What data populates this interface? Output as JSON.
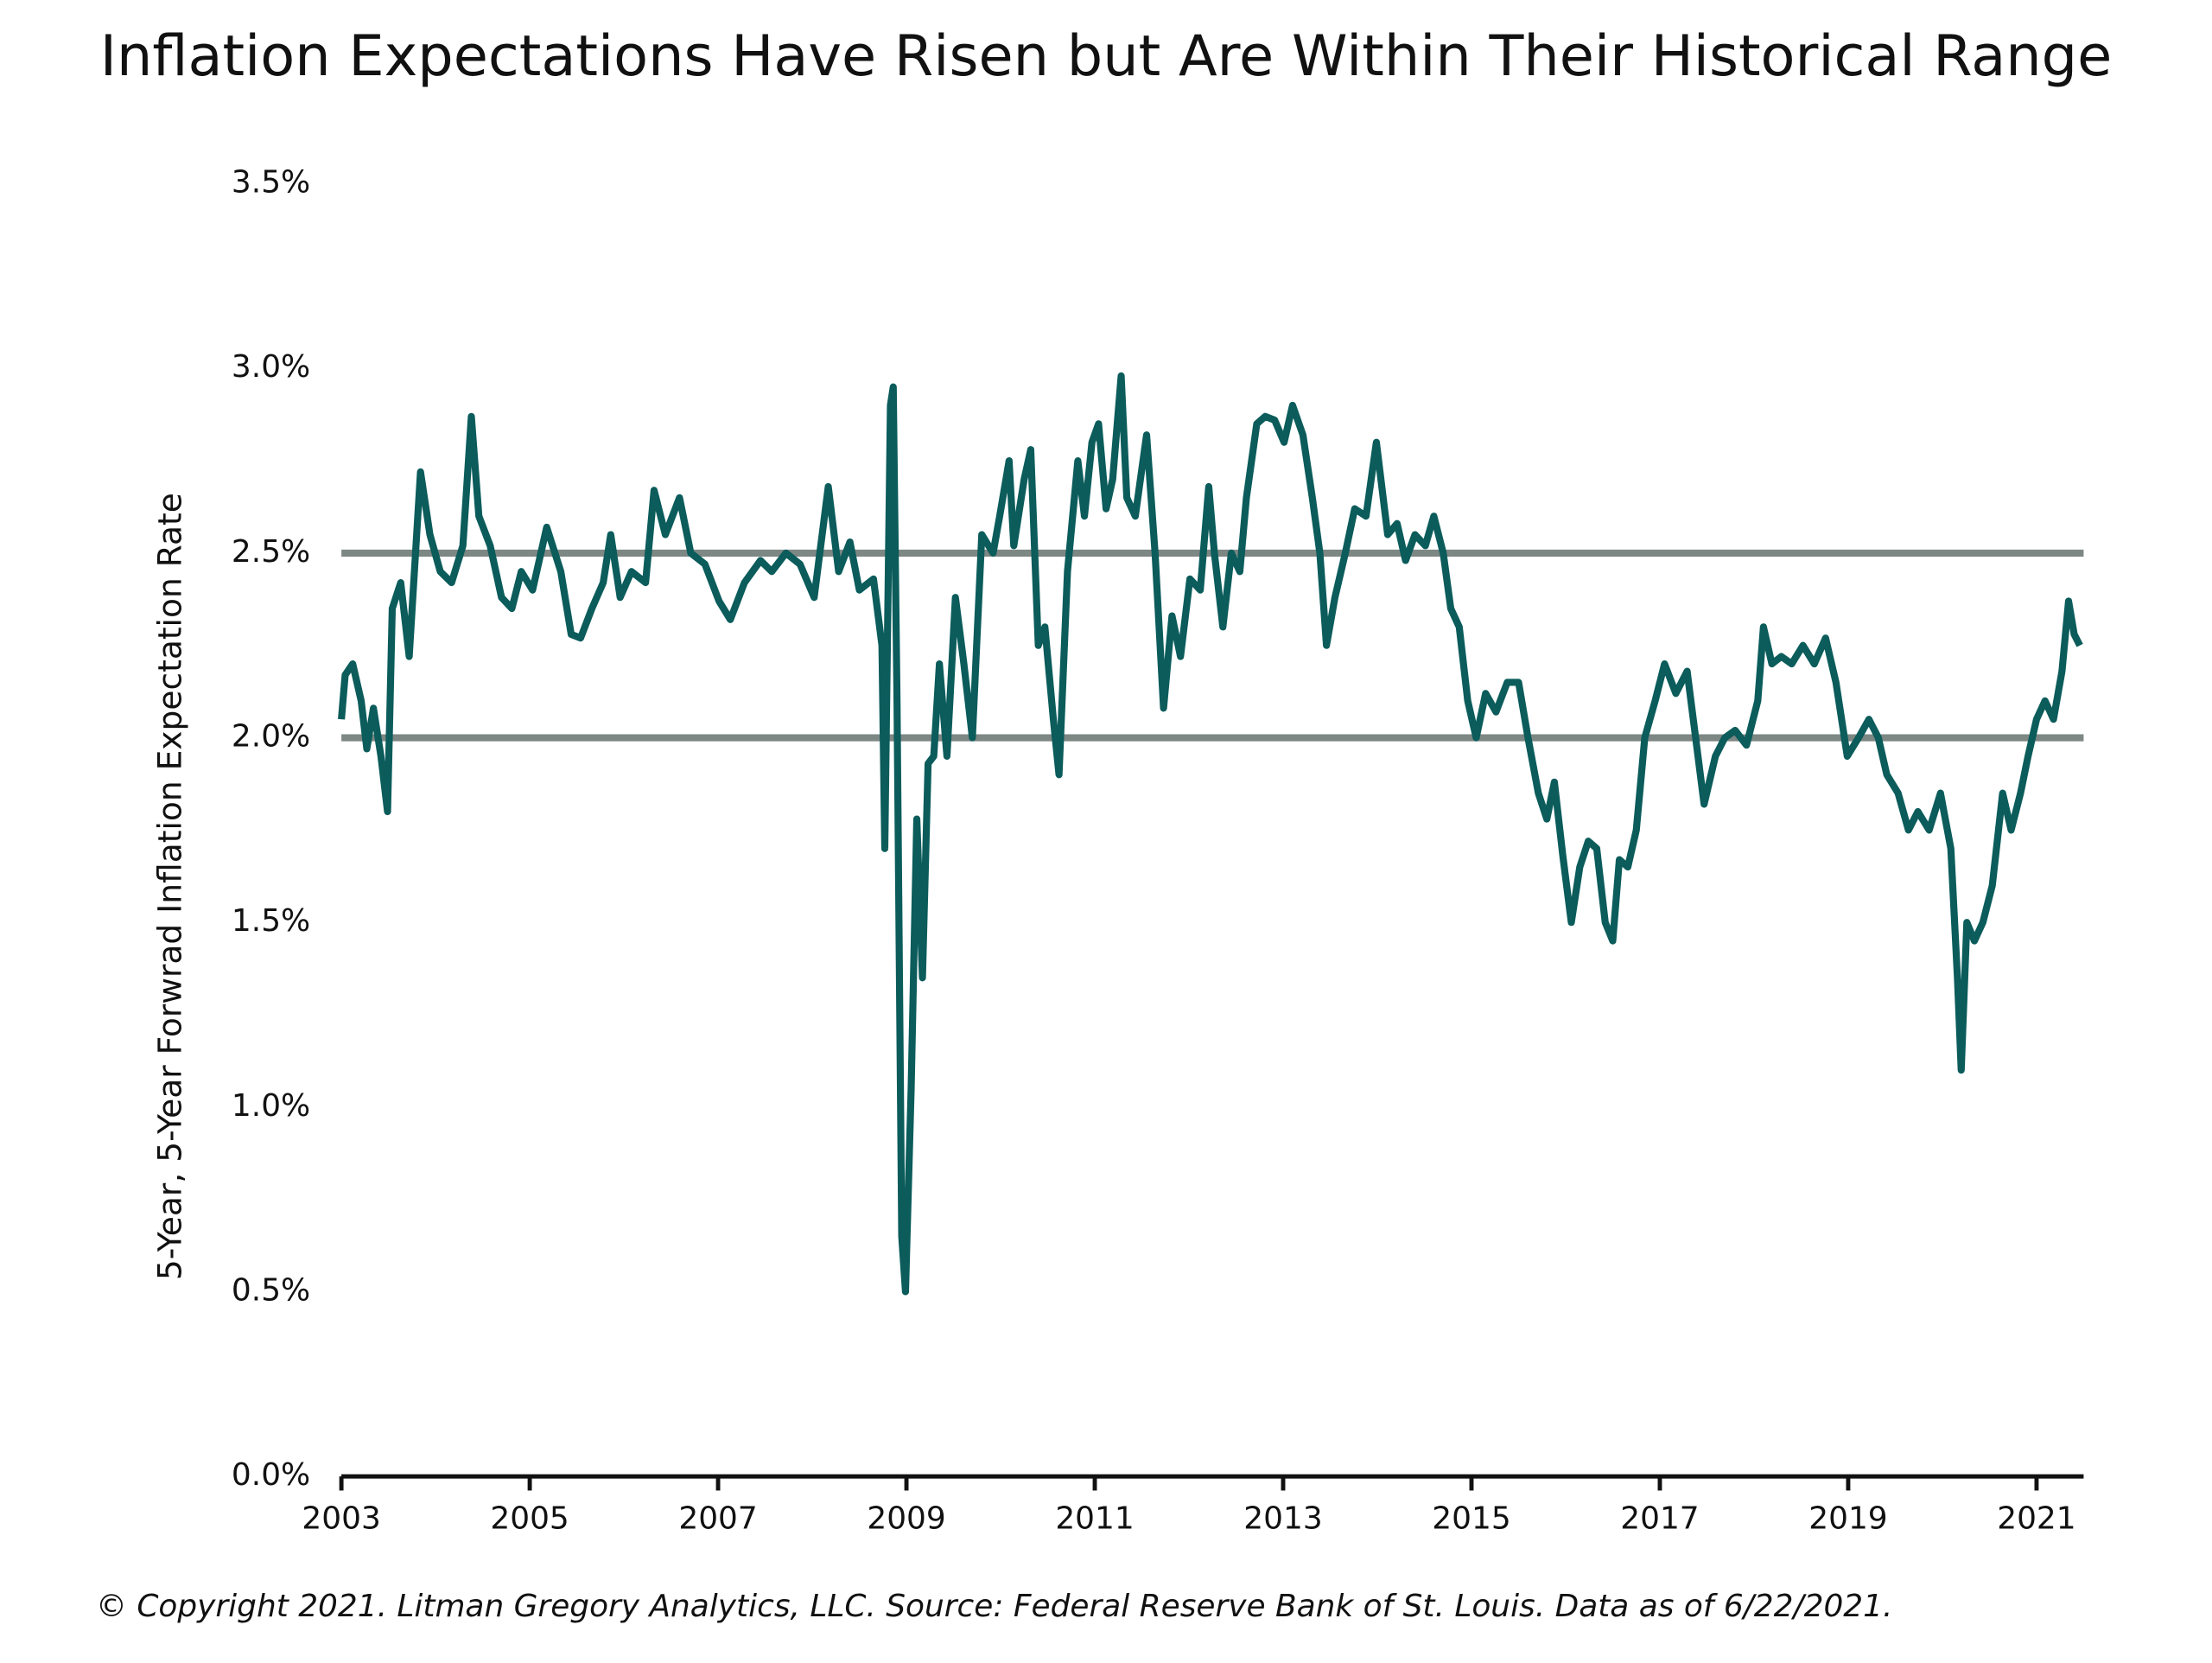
{
  "chart_data": {
    "type": "line",
    "title": "Inflation Expectations Have Risen but Are Within Their Historical Range",
    "ylabel": "5-Year, 5-Year Forwrad Inflation Expectation Rate",
    "footnote": "© Copyright 2021. Litman Gregory Analytics, LLC. Source: Federal Reserve Bank of St. Louis. Data as of 6/22/2021.",
    "color": "#0b5c5b",
    "xlim": [
      2003,
      2021.5
    ],
    "xticks": [
      2003,
      2005,
      2007,
      2009,
      2011,
      2013,
      2015,
      2017,
      2019,
      2021
    ],
    "ylim": [
      0,
      3.5
    ],
    "yticks": [
      {
        "value": 0,
        "label": "0.0%"
      },
      {
        "value": 0.5,
        "label": "0.5%"
      },
      {
        "value": 1,
        "label": "1.0%"
      },
      {
        "value": 1.5,
        "label": "1.5%"
      },
      {
        "value": 2,
        "label": "2.0%"
      },
      {
        "value": 2.5,
        "label": "2.5%"
      },
      {
        "value": 3,
        "label": "3.0%"
      },
      {
        "value": 3.5,
        "label": "3.5%"
      }
    ],
    "reference_lines": {
      "values": [
        2.0,
        2.5
      ],
      "color": "#7d8784"
    },
    "x": [
      2003.0,
      2003.04,
      2003.12,
      2003.21,
      2003.27,
      2003.34,
      2003.42,
      2003.49,
      2003.54,
      2003.63,
      2003.72,
      2003.84,
      2003.94,
      2004.05,
      2004.17,
      2004.29,
      2004.38,
      2004.46,
      2004.58,
      2004.7,
      2004.81,
      2004.91,
      2005.03,
      2005.18,
      2005.33,
      2005.44,
      2005.54,
      2005.66,
      2005.78,
      2005.86,
      2005.96,
      2006.08,
      2006.23,
      2006.32,
      2006.44,
      2006.59,
      2006.71,
      2006.86,
      2007.01,
      2007.13,
      2007.28,
      2007.45,
      2007.57,
      2007.72,
      2007.87,
      2008.02,
      2008.17,
      2008.28,
      2008.4,
      2008.5,
      2008.65,
      2008.74,
      2008.77,
      2008.83,
      2008.86,
      2008.9,
      2008.95,
      2008.99,
      2009.05,
      2009.11,
      2009.17,
      2009.23,
      2009.29,
      2009.35,
      2009.43,
      2009.52,
      2009.61,
      2009.7,
      2009.8,
      2009.92,
      2009.99,
      2010.09,
      2010.14,
      2010.25,
      2010.32,
      2010.4,
      2010.47,
      2010.56,
      2010.62,
      2010.71,
      2010.82,
      2010.89,
      2010.97,
      2011.04,
      2011.12,
      2011.19,
      2011.28,
      2011.34,
      2011.43,
      2011.55,
      2011.64,
      2011.73,
      2011.82,
      2011.91,
      2012.01,
      2012.12,
      2012.21,
      2012.27,
      2012.36,
      2012.45,
      2012.54,
      2012.61,
      2012.72,
      2012.81,
      2012.91,
      2013.01,
      2013.1,
      2013.21,
      2013.31,
      2013.39,
      2013.46,
      2013.55,
      2013.66,
      2013.76,
      2013.88,
      2013.99,
      2014.11,
      2014.21,
      2014.3,
      2014.4,
      2014.51,
      2014.6,
      2014.7,
      2014.78,
      2014.87,
      2014.96,
      2015.05,
      2015.15,
      2015.26,
      2015.38,
      2015.5,
      2015.6,
      2015.71,
      2015.8,
      2015.88,
      2015.97,
      2016.06,
      2016.15,
      2016.24,
      2016.33,
      2016.42,
      2016.5,
      2016.57,
      2016.66,
      2016.75,
      2016.84,
      2016.95,
      2017.05,
      2017.17,
      2017.29,
      2017.38,
      2017.47,
      2017.59,
      2017.69,
      2017.8,
      2017.92,
      2018.04,
      2018.1,
      2018.19,
      2018.29,
      2018.4,
      2018.52,
      2018.64,
      2018.76,
      2018.87,
      2018.99,
      2019.11,
      2019.22,
      2019.32,
      2019.41,
      2019.53,
      2019.64,
      2019.74,
      2019.86,
      2019.98,
      2020.09,
      2020.16,
      2020.2,
      2020.26,
      2020.34,
      2020.43,
      2020.53,
      2020.64,
      2020.73,
      2020.83,
      2020.91,
      2021.0,
      2021.09,
      2021.18,
      2021.27,
      2021.34,
      2021.4,
      2021.46
    ],
    "values": [
      2.05,
      2.17,
      2.2,
      2.1,
      1.97,
      2.08,
      1.95,
      1.8,
      2.35,
      2.42,
      2.22,
      2.72,
      2.55,
      2.45,
      2.42,
      2.52,
      2.87,
      2.6,
      2.52,
      2.38,
      2.35,
      2.45,
      2.4,
      2.57,
      2.45,
      2.28,
      2.27,
      2.35,
      2.42,
      2.55,
      2.38,
      2.45,
      2.42,
      2.67,
      2.55,
      2.65,
      2.5,
      2.47,
      2.37,
      2.32,
      2.42,
      2.48,
      2.45,
      2.5,
      2.47,
      2.38,
      2.68,
      2.45,
      2.53,
      2.4,
      2.43,
      2.25,
      1.7,
      2.9,
      2.95,
      2.1,
      0.65,
      0.5,
      1.05,
      1.78,
      1.35,
      1.93,
      1.95,
      2.2,
      1.95,
      2.38,
      2.2,
      2.0,
      2.55,
      2.5,
      2.6,
      2.75,
      2.52,
      2.7,
      2.78,
      2.25,
      2.3,
      2.05,
      1.9,
      2.45,
      2.75,
      2.6,
      2.8,
      2.85,
      2.62,
      2.7,
      2.98,
      2.65,
      2.6,
      2.82,
      2.5,
      2.08,
      2.33,
      2.22,
      2.43,
      2.4,
      2.68,
      2.5,
      2.3,
      2.5,
      2.45,
      2.65,
      2.85,
      2.87,
      2.86,
      2.8,
      2.9,
      2.82,
      2.65,
      2.5,
      2.25,
      2.38,
      2.5,
      2.62,
      2.6,
      2.8,
      2.55,
      2.58,
      2.48,
      2.55,
      2.52,
      2.6,
      2.5,
      2.35,
      2.3,
      2.1,
      2.0,
      2.12,
      2.07,
      2.15,
      2.15,
      2.0,
      1.85,
      1.78,
      1.88,
      1.68,
      1.5,
      1.65,
      1.72,
      1.7,
      1.5,
      1.45,
      1.67,
      1.65,
      1.75,
      2.0,
      2.1,
      2.2,
      2.12,
      2.18,
      2.0,
      1.82,
      1.95,
      2.0,
      2.02,
      1.98,
      2.1,
      2.3,
      2.2,
      2.22,
      2.2,
      2.25,
      2.2,
      2.27,
      2.15,
      1.95,
      2.0,
      2.05,
      2.0,
      1.9,
      1.85,
      1.75,
      1.8,
      1.75,
      1.85,
      1.7,
      1.35,
      1.1,
      1.5,
      1.45,
      1.5,
      1.6,
      1.85,
      1.75,
      1.85,
      1.95,
      2.05,
      2.1,
      2.05,
      2.18,
      2.37,
      2.28,
      2.25
    ]
  }
}
